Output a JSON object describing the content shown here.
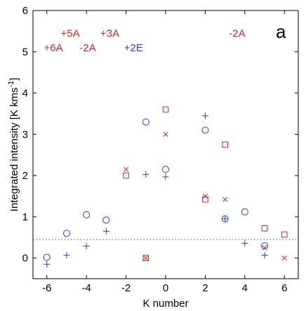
{
  "chart_data": {
    "type": "scatter",
    "panel_label": "a",
    "xlabel": "K number",
    "ylabel_main": "Integrated intensity [K kms",
    "ylabel_sup": "-1",
    "ylabel_end": "]",
    "xlim": [
      -6.7,
      6.7
    ],
    "ylim": [
      -0.5,
      6
    ],
    "xticks": [
      -6,
      -4,
      -2,
      0,
      2,
      4,
      6
    ],
    "yticks": [
      0,
      1,
      2,
      3,
      4,
      5,
      6
    ],
    "threshold": {
      "y": 0.45,
      "style": "dotted"
    },
    "colors": {
      "red": "#dd2222",
      "blue": "#2244cc"
    },
    "series": [
      {
        "marker": "circle",
        "color": "blue",
        "points": [
          [
            -6,
            0.02
          ],
          [
            -5,
            0.6
          ],
          [
            -4,
            1.05
          ],
          [
            -3,
            0.92
          ],
          [
            -1,
            3.3
          ],
          [
            0,
            2.15
          ],
          [
            2,
            3.1
          ],
          [
            3,
            0.95
          ],
          [
            4,
            1.12
          ],
          [
            5,
            0.3
          ]
        ]
      },
      {
        "marker": "plus",
        "color": "blue",
        "points": [
          [
            -6,
            -0.15
          ],
          [
            -5,
            0.07
          ],
          [
            -4,
            0.29
          ],
          [
            -3,
            0.65
          ],
          [
            -1,
            2.03
          ],
          [
            0,
            1.97
          ],
          [
            2,
            3.45
          ],
          [
            3,
            0.95
          ],
          [
            4,
            0.36
          ],
          [
            5,
            0.07
          ]
        ]
      },
      {
        "marker": "square",
        "color": "red",
        "points": [
          [
            -2,
            2.0
          ],
          [
            -1,
            0.0
          ],
          [
            0,
            3.6
          ],
          [
            2,
            1.42
          ],
          [
            3,
            2.75
          ],
          [
            5,
            0.72
          ],
          [
            6,
            0.57
          ]
        ]
      },
      {
        "marker": "cross",
        "color": "red",
        "points": [
          [
            -2,
            2.15
          ],
          [
            -1,
            0.0
          ],
          [
            0,
            3.0
          ],
          [
            2,
            1.5
          ],
          [
            3,
            1.42
          ],
          [
            5,
            0.25
          ],
          [
            6,
            0.0
          ]
        ]
      }
    ],
    "annotations": [
      {
        "text": "+5A",
        "x": -5.3,
        "y": 5.45,
        "color": "red"
      },
      {
        "text": "+3A",
        "x": -3.3,
        "y": 5.45,
        "color": "red"
      },
      {
        "text": "-2A",
        "x": 3.2,
        "y": 5.45,
        "color": "red"
      },
      {
        "text": "+6A",
        "x": -6.15,
        "y": 5.1,
        "color": "red"
      },
      {
        "text": "-2A",
        "x": -4.35,
        "y": 5.1,
        "color": "red"
      },
      {
        "text": "+2E",
        "x": -2.1,
        "y": 5.1,
        "color": "blue"
      }
    ]
  }
}
